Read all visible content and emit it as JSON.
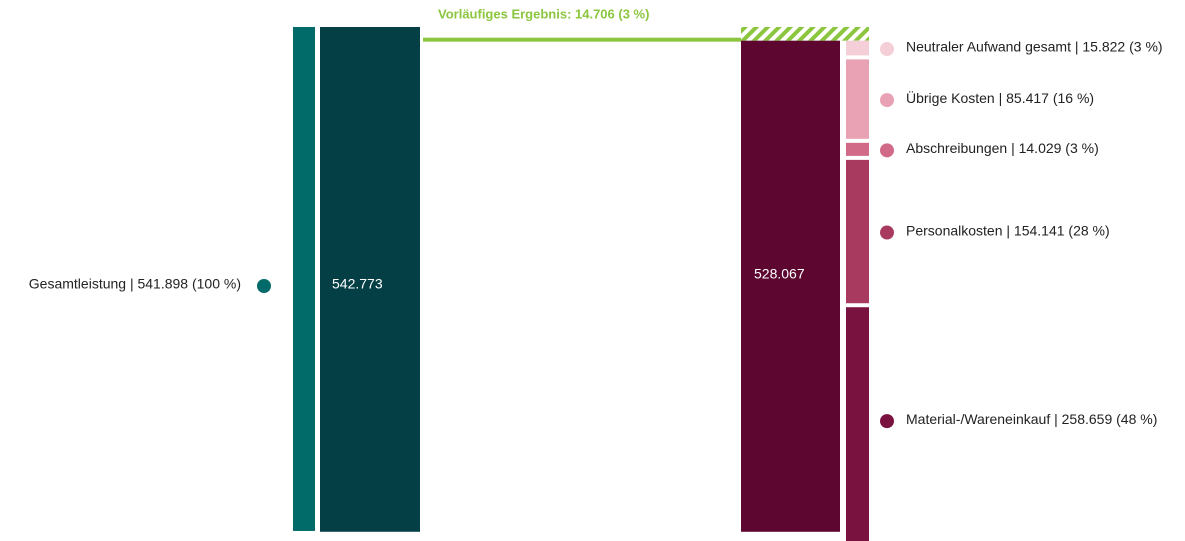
{
  "chart_data": {
    "type": "bar",
    "result": {
      "label": "Vorläufiges Ergebnis: 14.706 (3 %)",
      "value": 14706,
      "color": "#8cc63f"
    },
    "income": {
      "label": "Gesamtleistung | 541.898 (100 %)",
      "value": 541898,
      "color": "#006b68"
    },
    "left_total": {
      "value": 542773,
      "label": "542.773",
      "color": "#033f44"
    },
    "right_total": {
      "value": 528067,
      "label": "528.067",
      "color": "#5c0630"
    },
    "series": [
      {
        "name": "Neutraler Aufwand gesamt | 15.822 (3 %)",
        "value": 15822,
        "color": "#f5cfd8"
      },
      {
        "name": "Übrige Kosten | 85.417 (16 %)",
        "value": 85417,
        "color": "#e8a2b4"
      },
      {
        "name": "Abschreibungen | 14.029 (3 %)",
        "value": 14029,
        "color": "#d06a88"
      },
      {
        "name": "Personalkosten | 154.141 (28 %)",
        "value": 154141,
        "color": "#a83a60"
      },
      {
        "name": "Material-/Wareneinkauf | 258.659 (48 %)",
        "value": 258659,
        "color": "#7a1240"
      }
    ]
  }
}
